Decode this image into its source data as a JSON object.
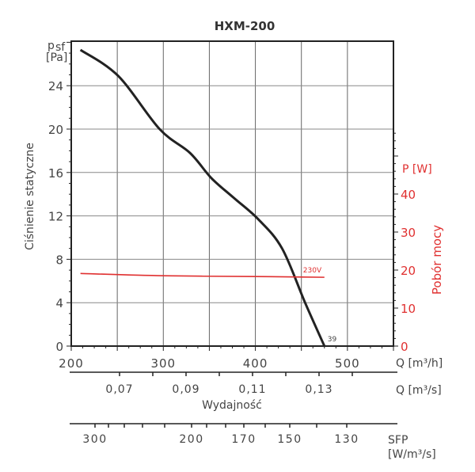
{
  "chart_data": {
    "type": "line",
    "title": "HXM-200",
    "ylabel": "Ciśnienie statyczne",
    "yunit_main": "p",
    "yunit_sub": "sf",
    "yunit_bracket": "[Pa]",
    "y2label": "Pobór mocy",
    "y2unit": "P [W]",
    "xlabel": "Wydajność",
    "xunit_h": "Q [m³/h]",
    "xunit_s": "Q [m³/s]",
    "sfp_label": "SFP",
    "sfp_unit": "[W/m³/s]",
    "xlim": [
      200,
      550
    ],
    "ylim": [
      0,
      28
    ],
    "y2lim": [
      0,
      58
    ],
    "grid": true,
    "x_ticks": [
      200,
      300,
      400,
      500
    ],
    "x_tick_labels": [
      "200",
      "300",
      "400",
      "500"
    ],
    "y_ticks": [
      0,
      4,
      8,
      12,
      16,
      20,
      24
    ],
    "y_tick_labels": [
      "0",
      "4",
      "8",
      "12",
      "16",
      "20",
      "24"
    ],
    "y2_ticks": [
      0,
      10,
      20,
      30,
      40
    ],
    "y2_tick_labels": [
      "0",
      "10",
      "20",
      "30",
      "40"
    ],
    "qs_ticks": [
      0.07,
      0.09,
      0.11,
      0.13
    ],
    "qs_tick_labels": [
      "0,07",
      "0,09",
      "0,11",
      "0,13"
    ],
    "sfp_ticks": [
      300,
      200,
      170,
      150,
      130
    ],
    "sfp_tick_labels": [
      "300",
      "200",
      "170",
      "150",
      "130"
    ],
    "series": [
      {
        "name": "Ciśnienie statyczne",
        "color": "#222222",
        "end_label": "39",
        "x": [
          210,
          251,
          296,
          329,
          352,
          376,
          403,
          429,
          454,
          475
        ],
        "y": [
          27.3,
          24.9,
          20.0,
          17.8,
          15.5,
          13.7,
          11.7,
          9.0,
          4.0,
          0
        ]
      },
      {
        "name": "230V",
        "color": "#e03030",
        "axis": "y2",
        "x": [
          210,
          300,
          400,
          475
        ],
        "y": [
          19.1,
          18.5,
          18.3,
          18.1
        ]
      }
    ]
  }
}
